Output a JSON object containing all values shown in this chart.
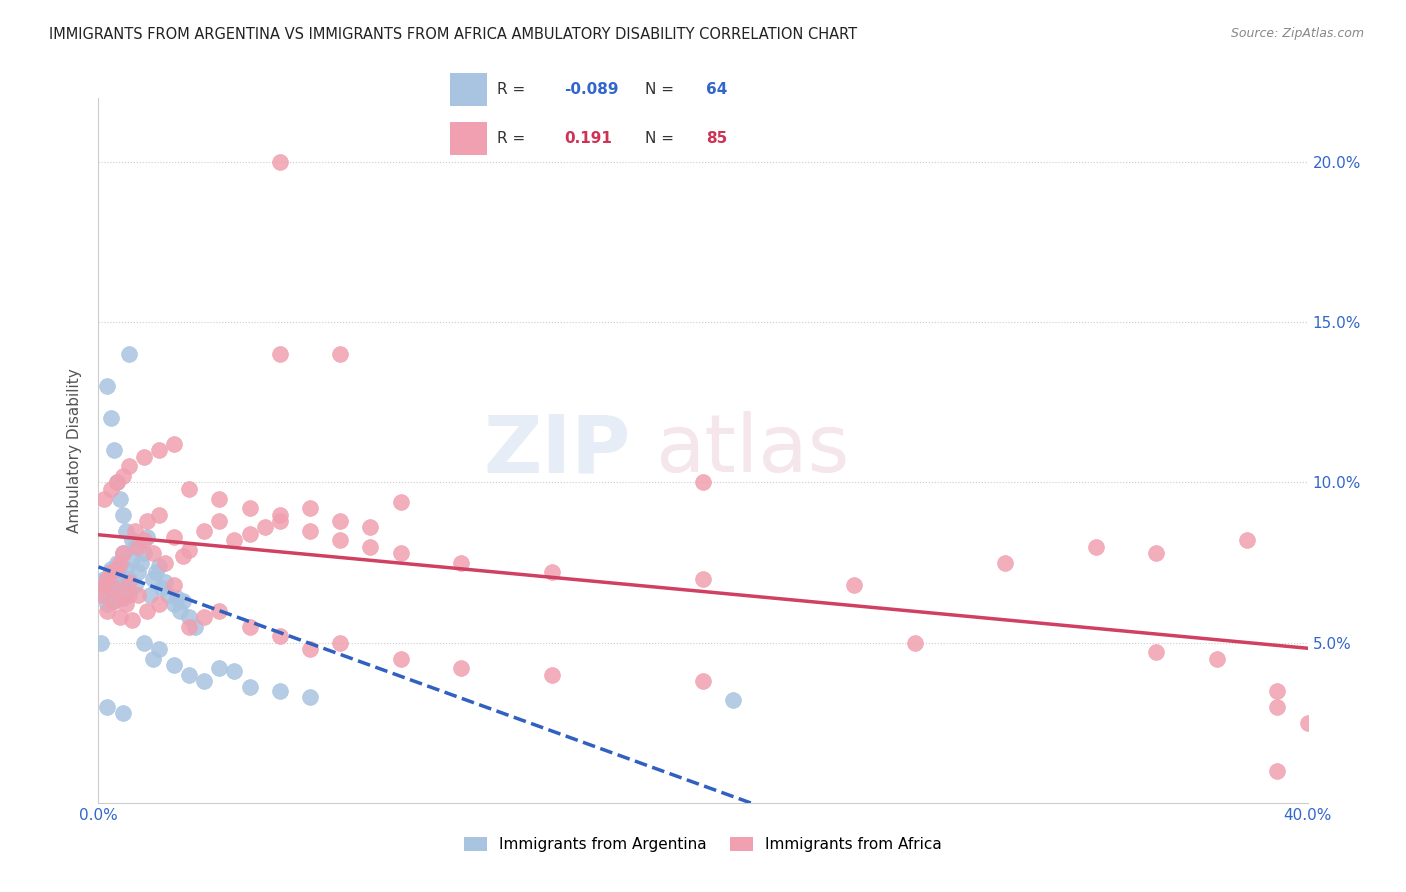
{
  "title": "IMMIGRANTS FROM ARGENTINA VS IMMIGRANTS FROM AFRICA AMBULATORY DISABILITY CORRELATION CHART",
  "source": "Source: ZipAtlas.com",
  "ylabel_label": "Ambulatory Disability",
  "xlim": [
    0.0,
    0.4
  ],
  "ylim": [
    0.0,
    0.22
  ],
  "xtick_positions": [
    0.0,
    0.05,
    0.1,
    0.15,
    0.2,
    0.25,
    0.3,
    0.35,
    0.4
  ],
  "xtick_labels": [
    "0.0%",
    "",
    "",
    "",
    "",
    "",
    "",
    "",
    "40.0%"
  ],
  "ytick_positions": [
    0.0,
    0.05,
    0.1,
    0.15,
    0.2
  ],
  "ytick_labels_right": [
    "",
    "5.0%",
    "10.0%",
    "15.0%",
    "20.0%"
  ],
  "legend_r_argentina": "-0.089",
  "legend_n_argentina": "64",
  "legend_r_africa": "0.191",
  "legend_n_africa": "85",
  "color_argentina": "#a8c4e0",
  "color_africa": "#f0a0b0",
  "color_line_argentina": "#3060c0",
  "color_line_africa": "#d04060",
  "argentina_x": [
    0.001,
    0.002,
    0.002,
    0.003,
    0.003,
    0.004,
    0.004,
    0.005,
    0.005,
    0.005,
    0.006,
    0.006,
    0.007,
    0.007,
    0.008,
    0.008,
    0.009,
    0.009,
    0.01,
    0.01,
    0.011,
    0.011,
    0.012,
    0.013,
    0.014,
    0.015,
    0.016,
    0.017,
    0.018,
    0.019,
    0.02,
    0.021,
    0.022,
    0.023,
    0.025,
    0.026,
    0.027,
    0.028,
    0.03,
    0.032,
    0.003,
    0.004,
    0.005,
    0.006,
    0.007,
    0.008,
    0.009,
    0.01,
    0.012,
    0.015,
    0.018,
    0.02,
    0.025,
    0.03,
    0.035,
    0.04,
    0.045,
    0.05,
    0.06,
    0.07,
    0.001,
    0.003,
    0.008,
    0.21
  ],
  "argentina_y": [
    0.069,
    0.065,
    0.07,
    0.062,
    0.068,
    0.073,
    0.067,
    0.072,
    0.066,
    0.063,
    0.075,
    0.071,
    0.068,
    0.074,
    0.078,
    0.064,
    0.069,
    0.073,
    0.065,
    0.07,
    0.082,
    0.076,
    0.068,
    0.072,
    0.075,
    0.078,
    0.083,
    0.065,
    0.07,
    0.072,
    0.074,
    0.067,
    0.069,
    0.065,
    0.062,
    0.064,
    0.06,
    0.063,
    0.058,
    0.055,
    0.13,
    0.12,
    0.11,
    0.1,
    0.095,
    0.09,
    0.085,
    0.14,
    0.08,
    0.05,
    0.045,
    0.048,
    0.043,
    0.04,
    0.038,
    0.042,
    0.041,
    0.036,
    0.035,
    0.033,
    0.05,
    0.03,
    0.028,
    0.032
  ],
  "africa_x": [
    0.001,
    0.002,
    0.003,
    0.004,
    0.005,
    0.006,
    0.007,
    0.008,
    0.009,
    0.01,
    0.012,
    0.013,
    0.015,
    0.016,
    0.018,
    0.02,
    0.022,
    0.025,
    0.028,
    0.03,
    0.035,
    0.04,
    0.045,
    0.05,
    0.055,
    0.06,
    0.07,
    0.08,
    0.09,
    0.1,
    0.003,
    0.005,
    0.007,
    0.009,
    0.011,
    0.013,
    0.016,
    0.02,
    0.025,
    0.03,
    0.035,
    0.04,
    0.05,
    0.06,
    0.07,
    0.08,
    0.1,
    0.12,
    0.15,
    0.2,
    0.002,
    0.004,
    0.006,
    0.008,
    0.01,
    0.015,
    0.02,
    0.025,
    0.03,
    0.04,
    0.05,
    0.06,
    0.07,
    0.08,
    0.09,
    0.1,
    0.12,
    0.15,
    0.2,
    0.25,
    0.3,
    0.35,
    0.38,
    0.06,
    0.27,
    0.35,
    0.39,
    0.39,
    0.06,
    0.08,
    0.2,
    0.33,
    0.37,
    0.39,
    0.4
  ],
  "africa_y": [
    0.065,
    0.068,
    0.07,
    0.072,
    0.067,
    0.073,
    0.075,
    0.078,
    0.065,
    0.069,
    0.085,
    0.08,
    0.082,
    0.088,
    0.078,
    0.09,
    0.075,
    0.083,
    0.077,
    0.079,
    0.085,
    0.088,
    0.082,
    0.084,
    0.086,
    0.09,
    0.092,
    0.088,
    0.086,
    0.094,
    0.06,
    0.063,
    0.058,
    0.062,
    0.057,
    0.065,
    0.06,
    0.062,
    0.068,
    0.055,
    0.058,
    0.06,
    0.055,
    0.052,
    0.048,
    0.05,
    0.045,
    0.042,
    0.04,
    0.038,
    0.095,
    0.098,
    0.1,
    0.102,
    0.105,
    0.108,
    0.11,
    0.112,
    0.098,
    0.095,
    0.092,
    0.088,
    0.085,
    0.082,
    0.08,
    0.078,
    0.075,
    0.072,
    0.07,
    0.068,
    0.075,
    0.078,
    0.082,
    0.14,
    0.05,
    0.047,
    0.03,
    0.01,
    0.2,
    0.14,
    0.1,
    0.08,
    0.045,
    0.035,
    0.025
  ]
}
